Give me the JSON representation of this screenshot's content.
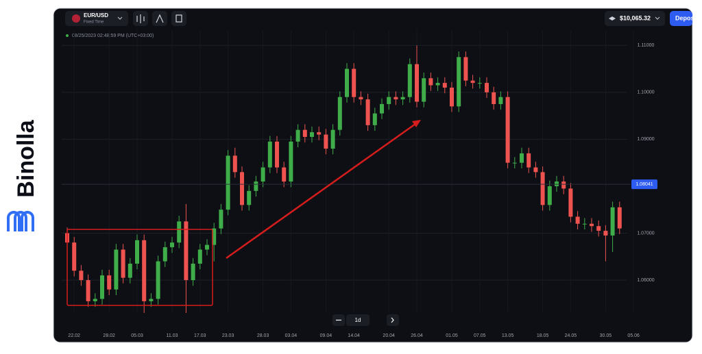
{
  "brand": "Binolla",
  "header": {
    "pair": "EUR/USD",
    "mode": "Fixed Time",
    "balance": "$10,065.32",
    "deposit": "Depos"
  },
  "timestamp": "08/25/2023 02:48:59 PM (UTC+03:00)",
  "timeframe": "1d",
  "chart_data": {
    "type": "candlestick",
    "up_color": "#3fae4a",
    "down_color": "#ef5350",
    "categories": [
      null,
      "22.02",
      null,
      null,
      null,
      null,
      "28.02",
      null,
      null,
      null,
      "05.03",
      null,
      null,
      null,
      null,
      "11.03",
      null,
      null,
      null,
      "17.03",
      null,
      null,
      null,
      "23.03",
      null,
      null,
      null,
      null,
      "28.03",
      null,
      null,
      null,
      "03.04",
      null,
      null,
      null,
      null,
      "09.04",
      null,
      null,
      null,
      "14.04",
      null,
      null,
      null,
      null,
      "20.04",
      null,
      null,
      null,
      "26.04",
      null,
      null,
      null,
      null,
      "01.05",
      null,
      null,
      null,
      "07.05",
      null,
      null,
      null,
      "13.05",
      null,
      null,
      null,
      null,
      "18.05",
      null,
      null,
      null,
      "24.05",
      null,
      null,
      null,
      null,
      "30.05",
      null,
      null,
      null,
      "05.06"
    ],
    "open": [
      1.07,
      1.068,
      1.062,
      1.06,
      1.0555,
      1.056,
      1.061,
      1.058,
      1.0665,
      1.0605,
      1.0635,
      1.0685,
      1.0555,
      1.056,
      1.064,
      1.067,
      1.068,
      1.0725,
      1.06,
      1.0635,
      1.0665,
      1.0675,
      1.071,
      1.075,
      1.0865,
      1.083,
      1.076,
      1.079,
      1.081,
      1.084,
      1.0895,
      1.084,
      1.081,
      1.0895,
      1.092,
      1.0905,
      1.0915,
      1.091,
      1.088,
      1.092,
      1.099,
      1.105,
      1.099,
      1.0985,
      1.093,
      1.0955,
      1.0975,
      1.099,
      1.0985,
      1.099,
      1.106,
      1.098,
      1.103,
      1.1015,
      1.102,
      1.101,
      1.097,
      1.1075,
      1.1025,
      1.102,
      1.102,
      1.1,
      1.0975,
      1.099,
      1.085,
      1.085,
      1.087,
      1.084,
      1.083,
      1.076,
      1.08,
      1.081,
      1.0795,
      1.0735,
      1.072,
      1.072,
      1.0715,
      1.0705,
      1.0695,
      1.0755,
      null,
      null
    ],
    "high": [
      1.0712,
      1.0692,
      1.0632,
      1.0612,
      1.0572,
      1.0622,
      1.0622,
      1.0677,
      1.0677,
      1.0647,
      1.0697,
      1.0697,
      1.0572,
      1.0652,
      1.0682,
      1.0692,
      1.0737,
      1.0762,
      1.0647,
      1.0677,
      1.0687,
      1.0722,
      1.0762,
      1.0877,
      1.0882,
      1.0842,
      1.0802,
      1.0822,
      1.0852,
      1.0907,
      1.0907,
      1.0852,
      1.0907,
      1.0932,
      1.0932,
      1.0927,
      1.0927,
      1.0922,
      1.0932,
      1.1002,
      1.1062,
      1.1062,
      1.1002,
      1.0997,
      1.0967,
      1.0987,
      1.1002,
      1.1002,
      1.1002,
      1.1072,
      1.11,
      1.1042,
      1.1042,
      1.1032,
      1.1032,
      1.1022,
      1.1087,
      1.1087,
      1.1037,
      1.1032,
      1.1032,
      1.1012,
      1.1002,
      1.1002,
      1.0862,
      1.0882,
      1.0882,
      1.0852,
      1.0842,
      1.0812,
      1.0822,
      1.0822,
      1.0807,
      1.0747,
      1.0732,
      1.0732,
      1.0727,
      1.0717,
      1.0767,
      1.0767,
      null,
      null
    ],
    "low": [
      1.0668,
      1.0608,
      1.0588,
      1.0543,
      1.0543,
      1.0548,
      1.0568,
      1.0568,
      1.0593,
      1.0593,
      1.0623,
      1.053,
      1.0543,
      1.0548,
      1.0628,
      1.0658,
      1.0668,
      1.053,
      1.0588,
      1.0623,
      1.0653,
      1.064,
      1.0698,
      1.0738,
      1.0818,
      1.0748,
      1.0748,
      1.0778,
      1.0798,
      1.0828,
      1.0828,
      1.0798,
      1.0798,
      1.0883,
      1.0893,
      1.0893,
      1.0898,
      1.0868,
      1.0868,
      1.0908,
      1.0978,
      1.0978,
      1.0973,
      1.0918,
      1.0918,
      1.0943,
      1.0963,
      1.0973,
      1.0973,
      1.0978,
      1.0968,
      1.0968,
      1.1003,
      1.1003,
      1.0998,
      1.0958,
      1.0958,
      1.1013,
      1.1008,
      1.1008,
      1.0988,
      1.0963,
      1.0963,
      1.0838,
      1.0838,
      1.0838,
      1.0828,
      1.0818,
      1.0748,
      1.0748,
      1.0788,
      1.0783,
      1.0723,
      1.0708,
      1.0708,
      1.0703,
      1.0693,
      1.064,
      1.066,
      1.0698,
      null,
      null
    ],
    "close": [
      1.068,
      1.062,
      1.06,
      1.0555,
      1.056,
      1.061,
      1.058,
      1.0665,
      1.0605,
      1.0635,
      1.0685,
      1.0555,
      1.056,
      1.064,
      1.067,
      1.068,
      1.0725,
      1.06,
      1.0635,
      1.0665,
      1.0675,
      1.071,
      1.075,
      1.0865,
      1.083,
      1.076,
      1.079,
      1.081,
      1.084,
      1.0895,
      1.084,
      1.081,
      1.0895,
      1.092,
      1.0905,
      1.0915,
      1.091,
      1.088,
      1.092,
      1.099,
      1.105,
      1.099,
      1.0985,
      1.093,
      1.0955,
      1.0975,
      1.099,
      1.0985,
      1.099,
      1.106,
      1.098,
      1.103,
      1.1015,
      1.102,
      1.101,
      1.097,
      1.1075,
      1.1025,
      1.102,
      1.102,
      1.1,
      1.0975,
      1.099,
      1.085,
      1.085,
      1.087,
      1.084,
      1.083,
      1.076,
      1.08,
      1.081,
      1.0795,
      1.0735,
      1.072,
      1.072,
      1.0715,
      1.0705,
      1.0695,
      1.0755,
      1.071,
      null,
      null
    ],
    "ylim": [
      1.0533,
      1.1131
    ],
    "yticks": [
      {
        "value": 1.06,
        "label": "1.06000"
      },
      {
        "value": 1.07,
        "label": "1.07000"
      },
      {
        "value": 1.09,
        "label": "1.09000"
      },
      {
        "value": 1.1,
        "label": "1.10000"
      },
      {
        "value": 1.11,
        "label": "1.11000"
      }
    ],
    "current_price": {
      "value": 1.08041,
      "label": "1.08041"
    },
    "grid": true
  }
}
